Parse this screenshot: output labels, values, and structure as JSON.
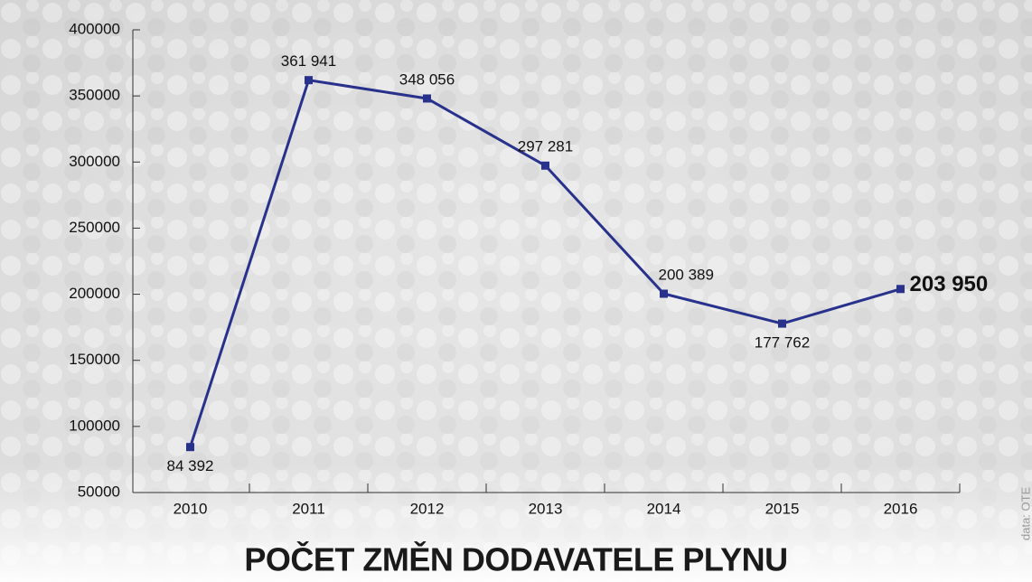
{
  "chart_data": {
    "type": "line",
    "title": "POČET ZMĚN DODAVATELE PLYNU",
    "source": "data: OTE",
    "categories": [
      "2010",
      "2011",
      "2012",
      "2013",
      "2014",
      "2015",
      "2016"
    ],
    "values": [
      84392,
      361941,
      348056,
      297281,
      200389,
      177762,
      203950
    ],
    "value_labels": [
      "84 392",
      "361 941",
      "348 056",
      "297 281",
      "200 389",
      "177 762",
      "203 950"
    ],
    "color": "#28318c",
    "ylim": [
      50000,
      400000
    ],
    "yticks": [
      50000,
      100000,
      150000,
      200000,
      250000,
      300000,
      350000,
      400000
    ]
  }
}
